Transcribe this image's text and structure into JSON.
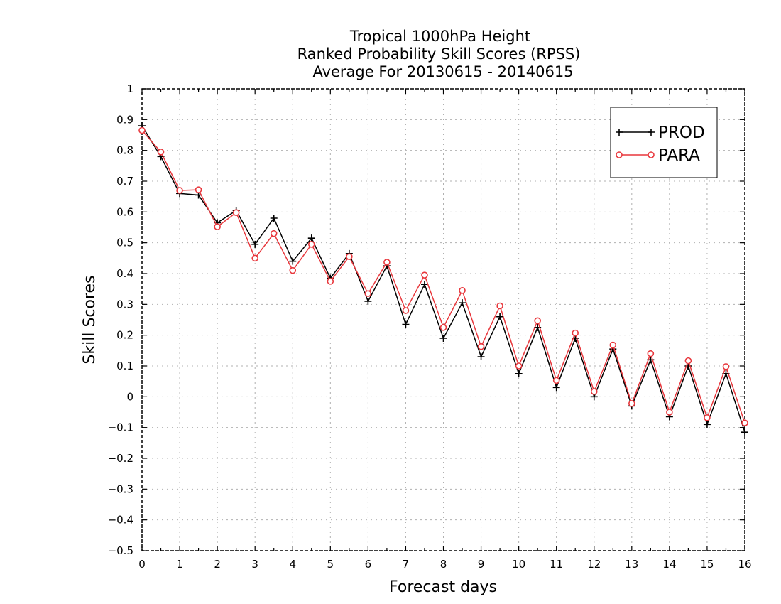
{
  "chart_data": {
    "type": "line",
    "title": [
      "Tropical 1000hPa Height",
      "Ranked Probability Skill Scores (RPSS)",
      "Average For 20130615 - 20140615"
    ],
    "xlabel": "Forecast days",
    "ylabel": "Skill Scores",
    "xlim": [
      0,
      16
    ],
    "ylim": [
      -0.5,
      1
    ],
    "xticks": [
      "0",
      "1",
      "2",
      "3",
      "4",
      "5",
      "6",
      "7",
      "8",
      "9",
      "10",
      "11",
      "12",
      "13",
      "14",
      "15",
      "16"
    ],
    "yticks": [
      "1",
      "0.9",
      "0.8",
      "0.7",
      "0.6",
      "0.5",
      "0.4",
      "0.3",
      "0.2",
      "0.1",
      "0",
      "−0.1",
      "−0.2",
      "−0.3",
      "−0.4",
      "−0.5"
    ],
    "grid": true,
    "legend": "top-right",
    "x": [
      0,
      0.5,
      1,
      1.5,
      2,
      2.5,
      3,
      3.5,
      4,
      4.5,
      5,
      5.5,
      6,
      6.5,
      7,
      7.5,
      8,
      8.5,
      9,
      9.5,
      10,
      10.5,
      11,
      11.5,
      12,
      12.5,
      13,
      13.5,
      14,
      14.5,
      15,
      15.5,
      16
    ],
    "series": [
      {
        "name": "PROD",
        "color": "#000000",
        "marker": "plus",
        "values": [
          0.88,
          0.78,
          0.66,
          0.655,
          0.565,
          0.605,
          0.495,
          0.58,
          0.44,
          0.515,
          0.385,
          0.465,
          0.31,
          0.425,
          0.235,
          0.365,
          0.19,
          0.305,
          0.13,
          0.26,
          0.075,
          0.225,
          0.03,
          0.19,
          0.0,
          0.155,
          -0.03,
          0.12,
          -0.065,
          0.1,
          -0.09,
          0.075,
          -0.115
        ]
      },
      {
        "name": "PARA",
        "color": "#e8373c",
        "marker": "circle",
        "values": [
          0.865,
          0.795,
          0.67,
          0.672,
          0.552,
          0.598,
          0.45,
          0.53,
          0.41,
          0.495,
          0.375,
          0.455,
          0.335,
          0.437,
          0.28,
          0.395,
          0.225,
          0.345,
          0.163,
          0.295,
          0.1,
          0.247,
          0.053,
          0.207,
          0.017,
          0.168,
          -0.022,
          0.14,
          -0.05,
          0.117,
          -0.068,
          0.098,
          -0.085
        ]
      }
    ]
  }
}
